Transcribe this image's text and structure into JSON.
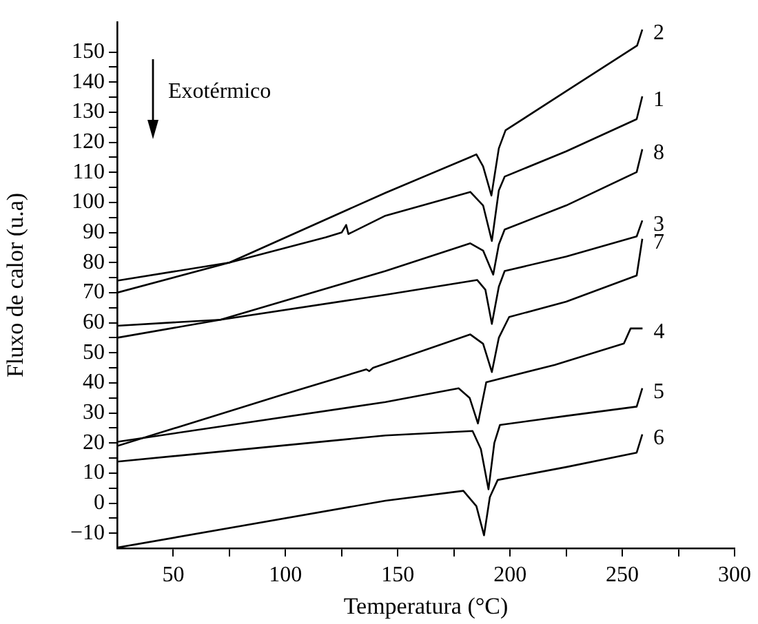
{
  "chart_data": {
    "type": "line",
    "xlabel": "Temperatura (°C)",
    "ylabel": "Fluxo de calor (u.a)",
    "annotations": [
      "Exotérmico"
    ],
    "xlim": [
      25,
      300
    ],
    "ylim": [
      -15,
      160
    ],
    "xticks": [
      50,
      {
        "value": 75,
        "label": null
      },
      100,
      {
        "value": 125,
        "label": null
      },
      150,
      {
        "value": 175,
        "label": null
      },
      200,
      {
        "value": 225,
        "label": null
      },
      250,
      {
        "value": 275,
        "label": null
      },
      300
    ],
    "yticks": [
      -10,
      {
        "value": -5,
        "label": null
      },
      0,
      {
        "value": 5,
        "label": null
      },
      10,
      {
        "value": 15,
        "label": null
      },
      20,
      {
        "value": 25,
        "label": null
      },
      30,
      {
        "value": 35,
        "label": null
      },
      40,
      {
        "value": 45,
        "label": null
      },
      50,
      {
        "value": 55,
        "label": null
      },
      60,
      {
        "value": 65,
        "label": null
      },
      70,
      {
        "value": 75,
        "label": null
      },
      80,
      {
        "value": 85,
        "label": null
      },
      90,
      {
        "value": 95,
        "label": null
      },
      100,
      {
        "value": 105,
        "label": null
      },
      110,
      {
        "value": 115,
        "label": null
      },
      120,
      {
        "value": 125,
        "label": null
      },
      130,
      {
        "value": 135,
        "label": null
      },
      140,
      {
        "value": 145,
        "label": null
      },
      150
    ],
    "grid": false,
    "legend": false,
    "marker": "none",
    "line_style": "solid",
    "series": [
      {
        "name": "2",
        "color": "#000000",
        "x": [
          25,
          75,
          144.5,
          182,
          185,
          188,
          191.7,
          195,
          198,
          225,
          256.6,
          258.9
        ],
        "values": [
          70,
          80,
          103.2,
          115,
          116,
          112,
          102.3,
          118,
          124,
          137,
          152.2,
          157.5
        ]
      },
      {
        "name": "1",
        "color": "#000000",
        "x": [
          25,
          75,
          118,
          125,
          127,
          128,
          144.5,
          182.3,
          188,
          191.9,
          195,
          197.6,
          225,
          256.4,
          258.9
        ],
        "values": [
          74,
          80,
          88.4,
          90,
          92.5,
          89.5,
          95.6,
          103.5,
          99,
          87.2,
          104,
          108.6,
          117,
          127.7,
          135.3
        ]
      },
      {
        "name": "8",
        "color": "#000000",
        "x": [
          25,
          71,
          144.5,
          182.3,
          188,
          192.5,
          195,
          197.6,
          225,
          256.4,
          258.9
        ],
        "values": [
          55,
          61,
          77.2,
          86.4,
          84,
          76,
          86,
          91,
          99,
          110.1,
          117.7
        ]
      },
      {
        "name": "3",
        "color": "#000000",
        "x": [
          25,
          71,
          144.5,
          185.4,
          189,
          191.9,
          195,
          197.6,
          225,
          256.4,
          258.9
        ],
        "values": [
          59,
          61,
          69.3,
          74.2,
          71,
          59.6,
          72,
          77.2,
          82,
          88.7,
          94
        ]
      },
      {
        "name": "7",
        "color": "#000000",
        "x": [
          25,
          98.5,
          136,
          137.3,
          139,
          182.3,
          188,
          191.9,
          195,
          199.6,
          225,
          256.4,
          258.9
        ],
        "values": [
          19,
          36,
          44.5,
          43.9,
          45,
          56.1,
          53,
          43.6,
          55,
          61.9,
          67,
          75.7,
          87.9
        ]
      },
      {
        "name": "4",
        "color": "#000000",
        "x": [
          25,
          144.5,
          177.1,
          182,
          185.7,
          189.4,
          220,
          250.7,
          253.7,
          259
        ],
        "values": [
          20.4,
          33.6,
          38.2,
          35,
          26.5,
          40.2,
          46,
          53.1,
          58.1,
          58.1
        ]
      },
      {
        "name": "5",
        "color": "#000000",
        "x": [
          25,
          144.5,
          183.3,
          187,
          190.4,
          193,
          195.5,
          225,
          256.4,
          258.9
        ],
        "values": [
          13.8,
          22.5,
          24,
          18,
          4.6,
          20,
          26,
          29,
          32.1,
          38.2
        ]
      },
      {
        "name": "6",
        "color": "#000000",
        "x": [
          25,
          144.5,
          179.2,
          185,
          188.4,
          191,
          194.5,
          225,
          256.4,
          258.9
        ],
        "values": [
          -14.8,
          0.8,
          4.1,
          -1,
          -10.7,
          2,
          7.7,
          12,
          16.8,
          22.9
        ]
      }
    ]
  }
}
